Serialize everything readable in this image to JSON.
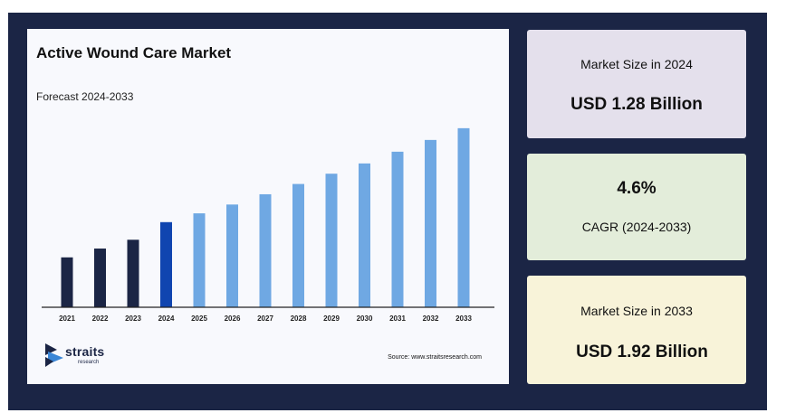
{
  "chart_data": {
    "type": "bar",
    "title": "Active Wound Care Market",
    "subtitle": "Forecast 2024-2033",
    "categories": [
      "2021",
      "2022",
      "2023",
      "2024",
      "2025",
      "2026",
      "2027",
      "2028",
      "2029",
      "2030",
      "2031",
      "2032",
      "2033"
    ],
    "values": [
      1.04,
      1.1,
      1.16,
      1.28,
      1.34,
      1.4,
      1.47,
      1.54,
      1.61,
      1.68,
      1.76,
      1.84,
      1.92
    ],
    "ylim": [
      0.7,
      1.95
    ],
    "bar_colors": [
      "#1b2545",
      "#1b2545",
      "#1b2545",
      "#1045b0",
      "#6fa8e3",
      "#6fa8e3",
      "#6fa8e3",
      "#6fa8e3",
      "#6fa8e3",
      "#6fa8e3",
      "#6fa8e3",
      "#6fa8e3",
      "#6fa8e3"
    ],
    "axis_color": "#222222",
    "grid": false,
    "legend": "none"
  },
  "branding": {
    "logo_text": "straits",
    "logo_subtext": "research",
    "source": "Source: www.straitsresearch.com"
  },
  "stats": {
    "size_2024": {
      "label": "Market Size in 2024",
      "value": "USD 1.28 Billion"
    },
    "cagr": {
      "value": "4.6%",
      "label": "CAGR (2024-2033)"
    },
    "size_2033": {
      "label": "Market Size in 2033",
      "value": "USD 1.92 Billion"
    }
  }
}
